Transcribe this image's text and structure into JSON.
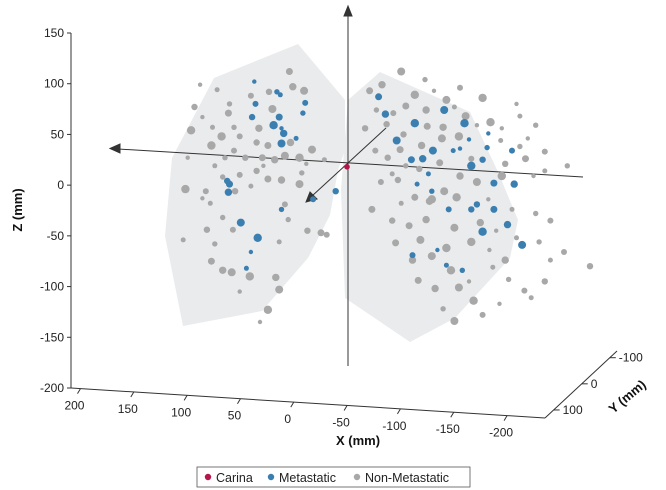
{
  "chart_data": {
    "type": "scatter",
    "projection": "3d",
    "axes": {
      "x": {
        "label": "X (mm)",
        "ticks": [
          200,
          150,
          100,
          50,
          0,
          -50,
          -100,
          -150,
          -200
        ],
        "range": [
          200,
          -200
        ]
      },
      "y": {
        "label": "Y (mm)",
        "ticks": [
          -100,
          0,
          100
        ],
        "range": [
          -100,
          100
        ]
      },
      "z": {
        "label": "Z (mm)",
        "ticks": [
          150,
          100,
          50,
          0,
          -50,
          -100,
          -150,
          -200
        ],
        "range": [
          -200,
          150
        ]
      }
    },
    "legend": {
      "position": "bottom-center",
      "entries": [
        {
          "label": "Carina",
          "color": "#b5174a"
        },
        {
          "label": "Metastatic",
          "color": "#3a7fb0"
        },
        {
          "label": "Non-Metastatic",
          "color": "#a8a8a8"
        }
      ]
    },
    "colors": {
      "lung_region": "#e9ebed",
      "metastatic": "#3a7fb0",
      "non_metastatic": "#a8a8a8",
      "carina": "#b5174a"
    },
    "carina": {
      "x": 0,
      "z": 22
    },
    "series": [
      {
        "name": "Metastatic",
        "points": [
          [
            82,
            106
          ],
          [
            59,
            93
          ],
          [
            62,
            96
          ],
          [
            81,
            84
          ],
          [
            84,
            71
          ],
          [
            60,
            71
          ],
          [
            56,
            55
          ],
          [
            58,
            45
          ],
          [
            65,
            63
          ],
          [
            58,
            60
          ],
          [
            45,
            50
          ],
          [
            39,
            75
          ],
          [
            37,
            85
          ],
          [
            106,
            8
          ],
          [
            104,
            5
          ],
          [
            105,
            -3
          ],
          [
            94,
            -33
          ],
          [
            79,
            -48
          ],
          [
            85,
            -62
          ],
          [
            89,
            -78
          ],
          [
            58,
            -20
          ],
          [
            30,
            -10
          ],
          [
            10,
            -2
          ],
          [
            -28,
            91
          ],
          [
            -34,
            74
          ],
          [
            -86,
            78
          ],
          [
            -104,
            65
          ],
          [
            -108,
            49
          ],
          [
            -94,
            38
          ],
          [
            -124,
            41
          ],
          [
            -146,
            38
          ],
          [
            -120,
            29
          ],
          [
            -57,
            29
          ],
          [
            -67,
            30
          ],
          [
            -76,
            38
          ],
          [
            -110,
            23
          ],
          [
            -125,
            55
          ],
          [
            -62,
            5
          ],
          [
            -75,
            -2
          ],
          [
            -90,
            -20
          ],
          [
            -110,
            -20
          ],
          [
            -130,
            -20
          ],
          [
            -142,
            -35
          ],
          [
            -155,
            -55
          ],
          [
            -120,
            -42
          ],
          [
            -80,
            -60
          ],
          [
            -88,
            -75
          ],
          [
            -102,
            -80
          ],
          [
            -58,
            -65
          ],
          [
            -115,
            -15
          ],
          [
            -130,
            6
          ],
          [
            -148,
            5
          ],
          [
            -44,
            48
          ],
          [
            -60,
            65
          ],
          [
            -100,
            40
          ],
          [
            -72,
            15
          ]
        ]
      },
      {
        "name": "Non-Metastatic",
        "points": [
          [
            130,
            103
          ],
          [
            115,
            98
          ],
          [
            104,
            84
          ],
          [
            85,
            92
          ],
          [
            69,
            96
          ],
          [
            51,
            116
          ],
          [
            48,
            101
          ],
          [
            38,
            97
          ],
          [
            138,
            58
          ],
          [
            128,
            71
          ],
          [
            119,
            61
          ],
          [
            100,
            61
          ],
          [
            95,
            52
          ],
          [
            80,
            46
          ],
          [
            70,
            43
          ],
          [
            50,
            46
          ],
          [
            31,
            39
          ],
          [
            120,
            43
          ],
          [
            141,
            31
          ],
          [
            117,
            23
          ],
          [
            108,
            31
          ],
          [
            100,
            38
          ],
          [
            90,
            31
          ],
          [
            75,
            31
          ],
          [
            64,
            29
          ],
          [
            55,
            33
          ],
          [
            42,
            31
          ],
          [
            36,
            25
          ],
          [
            20,
            29
          ],
          [
            110,
            12
          ],
          [
            95,
            14
          ],
          [
            80,
            18
          ],
          [
            70,
            10
          ],
          [
            58,
            9
          ],
          [
            42,
            5
          ],
          [
            143,
            0
          ],
          [
            128,
            -9
          ],
          [
            121,
            -14
          ],
          [
            110,
            -28
          ],
          [
            101,
            -40
          ],
          [
            124,
            -40
          ],
          [
            120,
            -71
          ],
          [
            110,
            -80
          ],
          [
            102,
            -82
          ],
          [
            86,
            -86
          ],
          [
            95,
            -101
          ],
          [
            60,
            -52
          ],
          [
            52,
            -30
          ],
          [
            55,
            -15
          ],
          [
            35,
            -41
          ],
          [
            23,
            -43
          ],
          [
            63,
            -87
          ],
          [
            60,
            -99
          ],
          [
            70,
            -119
          ],
          [
            77,
            -131
          ],
          [
            145,
            -50
          ],
          [
            117,
            -54
          ],
          [
            18,
            -45
          ],
          [
            135,
            81
          ],
          [
            105,
            75
          ],
          [
            78,
            60
          ],
          [
            66,
            79
          ],
          [
            111,
            52
          ],
          [
            74,
            23
          ],
          [
            85,
            3
          ],
          [
            40,
            16
          ],
          [
            125,
            -2
          ],
          [
            99,
            -2
          ],
          [
            -20,
            97
          ],
          [
            -31,
            103
          ],
          [
            -48,
            116
          ],
          [
            -60,
            93
          ],
          [
            -77,
            97
          ],
          [
            -95,
            81
          ],
          [
            -26,
            78
          ],
          [
            -41,
            75
          ],
          [
            -50,
            54
          ],
          [
            -71,
            62
          ],
          [
            -85,
            61
          ],
          [
            -105,
            72
          ],
          [
            -127,
            66
          ],
          [
            -137,
            60
          ],
          [
            -153,
            72
          ],
          [
            -167,
            63
          ],
          [
            -25,
            38
          ],
          [
            -36,
            31
          ],
          [
            -47,
            39
          ],
          [
            -66,
            43
          ],
          [
            -84,
            50
          ],
          [
            -99,
            52
          ],
          [
            -115,
            63
          ],
          [
            -136,
            48
          ],
          [
            -153,
            42
          ],
          [
            -175,
            37
          ],
          [
            -64,
            20
          ],
          [
            -82,
            26
          ],
          [
            -100,
            13
          ],
          [
            -115,
            7
          ],
          [
            -137,
            13
          ],
          [
            -165,
            13
          ],
          [
            -175,
            18
          ],
          [
            -195,
            23
          ],
          [
            -30,
            7
          ],
          [
            -45,
            9
          ],
          [
            -60,
            -8
          ],
          [
            -73,
            -12
          ],
          [
            -86,
            -2
          ],
          [
            -97,
            -8
          ],
          [
            -125,
            -10
          ],
          [
            -146,
            -20
          ],
          [
            -167,
            -24
          ],
          [
            -180,
            -31
          ],
          [
            -40,
            -31
          ],
          [
            -55,
            -36
          ],
          [
            -70,
            -30
          ],
          [
            -95,
            -38
          ],
          [
            -110,
            -52
          ],
          [
            -132,
            -41
          ],
          [
            -150,
            -48
          ],
          [
            -170,
            -52
          ],
          [
            -192,
            -62
          ],
          [
            -215,
            -76
          ],
          [
            -43,
            -53
          ],
          [
            -58,
            -70
          ],
          [
            -75,
            -66
          ],
          [
            -92,
            -80
          ],
          [
            -108,
            -91
          ],
          [
            -129,
            -77
          ],
          [
            -143,
            -89
          ],
          [
            -157,
            -100
          ],
          [
            -175,
            -91
          ],
          [
            -63,
            -90
          ],
          [
            -78,
            -98
          ],
          [
            -99,
            -97
          ],
          [
            -112,
            -110
          ],
          [
            -135,
            -113
          ],
          [
            -163,
            -107
          ],
          [
            -85,
            -118
          ],
          [
            -120,
            -124
          ],
          [
            -35,
            64
          ],
          [
            -52,
            82
          ],
          [
            -70,
            78
          ],
          [
            -88,
            88
          ],
          [
            -120,
            90
          ],
          [
            -150,
            84
          ],
          [
            -40,
            15
          ],
          [
            -52,
            23
          ],
          [
            -110,
            30
          ],
          [
            -140,
            25
          ],
          [
            -158,
            30
          ],
          [
            -118,
            -33
          ],
          [
            -65,
            -50
          ],
          [
            -88,
            -58
          ],
          [
            -126,
            -60
          ],
          [
            -180,
            -70
          ],
          [
            -69,
            108
          ],
          [
            -100,
            100
          ],
          [
            -16,
            60
          ],
          [
            -22,
            -20
          ],
          [
            -140,
            -70
          ],
          [
            -95,
            -130
          ],
          [
            -75,
            -10
          ],
          [
            -160,
            50
          ],
          [
            -48,
            -14
          ]
        ]
      }
    ]
  }
}
